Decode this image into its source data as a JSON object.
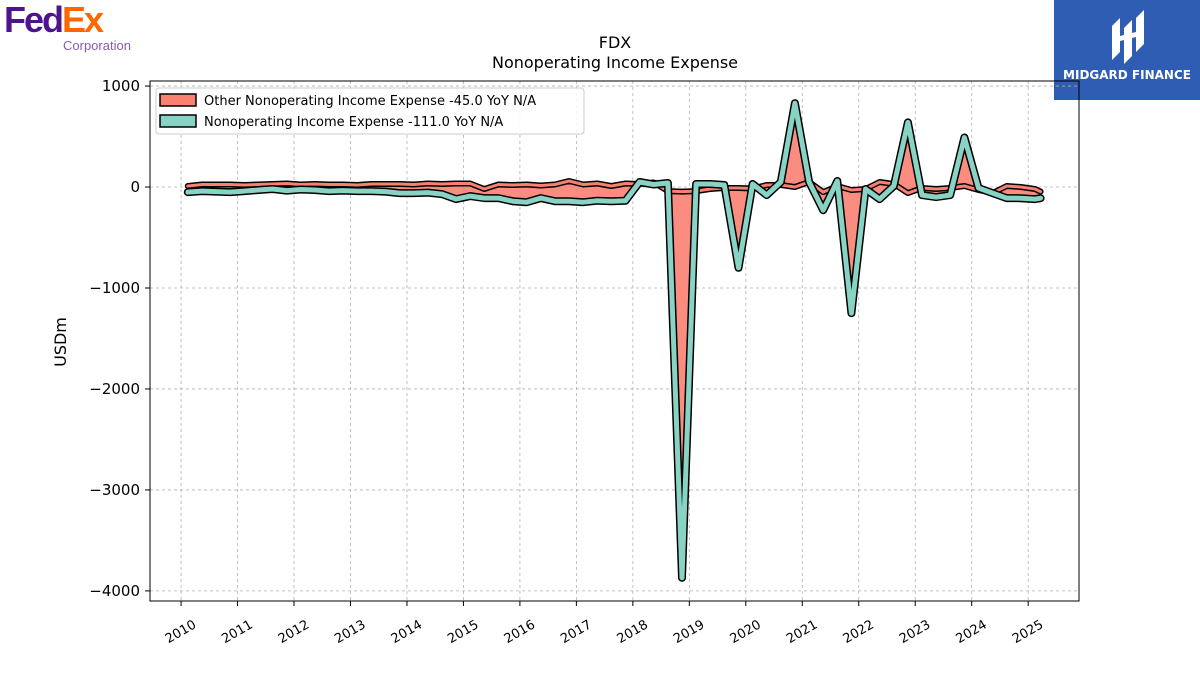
{
  "logos": {
    "left": {
      "part1": "Fed",
      "part2": "Ex",
      "subtitle": "Corporation"
    },
    "right": {
      "name": "MIDGARD FINANCE"
    }
  },
  "chart_data": {
    "type": "line",
    "title": "FDX",
    "subtitle": "Nonoperating Income Expense",
    "ylabel": "USDm",
    "xlabel": "",
    "ylim": [
      -4100,
      1050
    ],
    "xlim": [
      2009.45,
      2025.9
    ],
    "yticks": [
      1000,
      0,
      -1000,
      -2000,
      -3000,
      -4000
    ],
    "ytick_labels": [
      "1000",
      "0",
      "−1000",
      "−2000",
      "−3000",
      "−4000"
    ],
    "xticks": [
      2010,
      2011,
      2012,
      2013,
      2014,
      2015,
      2016,
      2017,
      2018,
      2019,
      2020,
      2021,
      2022,
      2023,
      2024,
      2025
    ],
    "xtick_labels": [
      "2010",
      "2011",
      "2012",
      "2013",
      "2014",
      "2015",
      "2016",
      "2017",
      "2018",
      "2019",
      "2020",
      "2021",
      "2022",
      "2023",
      "2024",
      "2025"
    ],
    "grid": true,
    "legend_position": "top-left",
    "series": [
      {
        "name": "Other Nonoperating Income Expense",
        "legend": "Other Nonoperating Income Expense  -45.0 YoY N/A",
        "color": "#fa8072",
        "x": [
          2010.12,
          2010.37,
          2010.62,
          2010.87,
          2011.12,
          2011.37,
          2011.62,
          2011.87,
          2012.12,
          2012.37,
          2012.62,
          2012.87,
          2013.12,
          2013.37,
          2013.62,
          2013.87,
          2014.12,
          2014.37,
          2014.62,
          2014.87,
          2015.12,
          2015.37,
          2015.62,
          2015.87,
          2016.12,
          2016.37,
          2016.62,
          2016.87,
          2017.12,
          2017.37,
          2017.62,
          2017.87,
          2018.12,
          2018.37,
          2018.62,
          2018.87,
          2019.12,
          2019.37,
          2019.62,
          2019.87,
          2020.12,
          2020.37,
          2020.62,
          2020.87,
          2021.12,
          2021.37,
          2021.62,
          2021.87,
          2022.12,
          2022.37,
          2022.62,
          2022.87,
          2023.12,
          2023.37,
          2023.62,
          2023.87,
          2024.12,
          2024.37,
          2024.62,
          2024.87,
          2025.12,
          2025.22
        ],
        "y": [
          10,
          25,
          25,
          25,
          20,
          25,
          30,
          35,
          25,
          30,
          25,
          25,
          20,
          30,
          30,
          30,
          25,
          35,
          30,
          35,
          35,
          -20,
          25,
          20,
          25,
          15,
          25,
          60,
          25,
          35,
          10,
          35,
          30,
          45,
          -40,
          -45,
          -40,
          -20,
          -10,
          -10,
          -15,
          20,
          20,
          0,
          50,
          -50,
          10,
          -30,
          -20,
          50,
          30,
          -60,
          -10,
          -20,
          -10,
          10,
          -30,
          -60,
          10,
          0,
          -20,
          -45
        ]
      },
      {
        "name": "Nonoperating Income Expense",
        "legend": "Nonoperating Income Expense  -111.0 YoY N/A",
        "color": "#88d3c4",
        "x": [
          2010.12,
          2010.37,
          2010.62,
          2010.87,
          2011.12,
          2011.37,
          2011.62,
          2011.87,
          2012.12,
          2012.37,
          2012.62,
          2012.87,
          2013.12,
          2013.37,
          2013.62,
          2013.87,
          2014.12,
          2014.37,
          2014.62,
          2014.87,
          2015.12,
          2015.37,
          2015.62,
          2015.87,
          2016.12,
          2016.37,
          2016.62,
          2016.87,
          2017.12,
          2017.37,
          2017.62,
          2017.87,
          2018.12,
          2018.37,
          2018.62,
          2018.87,
          2019.12,
          2019.37,
          2019.62,
          2019.87,
          2020.12,
          2020.37,
          2020.62,
          2020.87,
          2021.12,
          2021.37,
          2021.62,
          2021.87,
          2022.12,
          2022.37,
          2022.62,
          2022.87,
          2023.12,
          2023.37,
          2023.62,
          2023.87,
          2024.12,
          2024.37,
          2024.62,
          2024.87,
          2025.12,
          2025.22
        ],
        "y": [
          -50,
          -40,
          -45,
          -50,
          -40,
          -30,
          -20,
          -35,
          -25,
          -30,
          -40,
          -35,
          -40,
          -40,
          -45,
          -60,
          -60,
          -55,
          -70,
          -120,
          -90,
          -110,
          -110,
          -140,
          -150,
          -110,
          -140,
          -140,
          -150,
          -135,
          -140,
          -135,
          50,
          25,
          40,
          -3870,
          30,
          30,
          20,
          -800,
          30,
          -80,
          50,
          830,
          50,
          -230,
          60,
          -1250,
          -20,
          -120,
          10,
          640,
          -80,
          -100,
          -80,
          490,
          -10,
          -60,
          -110,
          -111,
          -120,
          -111
        ]
      }
    ]
  }
}
